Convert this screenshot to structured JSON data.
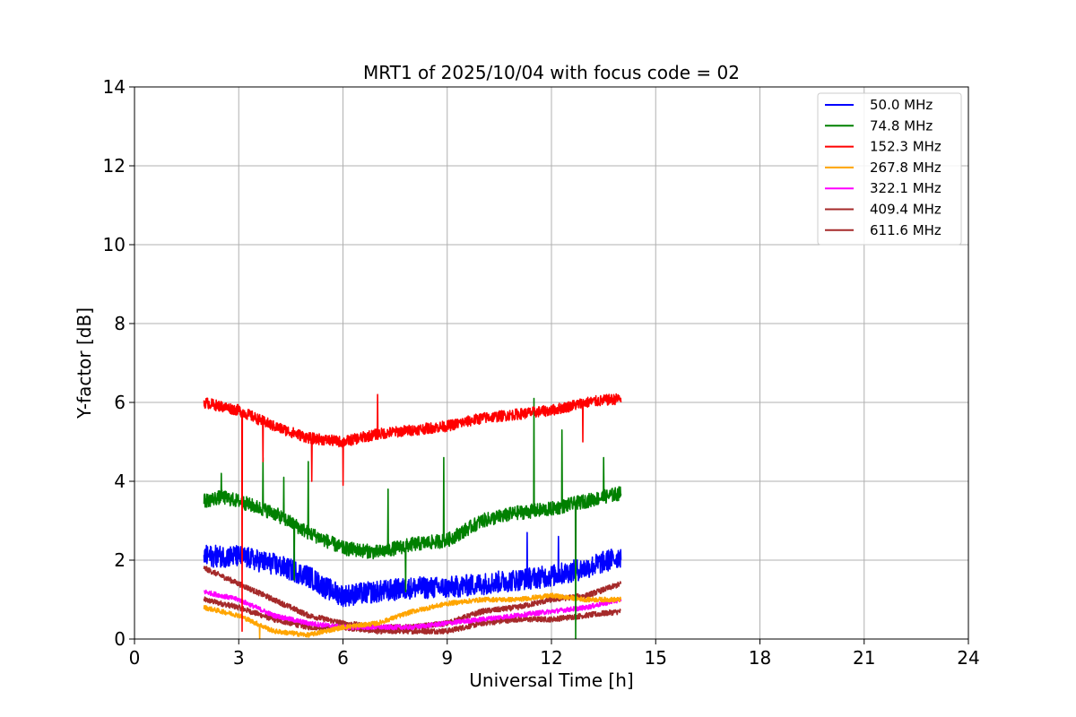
{
  "chart_data": {
    "type": "line",
    "title": "MRT1 of 2025/10/04 with focus code = 02",
    "xlabel": "Universal Time [h]",
    "ylabel": "Y-factor [dB]",
    "xlim": [
      0,
      24
    ],
    "ylim": [
      0,
      14
    ],
    "xticks": [
      0,
      3,
      6,
      9,
      12,
      15,
      18,
      21,
      24
    ],
    "yticks": [
      0,
      2,
      4,
      6,
      8,
      10,
      12,
      14
    ],
    "grid": true,
    "legend_position": "top-right",
    "x_range_data": [
      2.0,
      14.0
    ],
    "series": [
      {
        "name": " 50.0 MHz",
        "color": "#0000ff",
        "noise": 0.28,
        "x": [
          2.0,
          3.0,
          4.0,
          5.0,
          5.5,
          6.0,
          7.0,
          8.0,
          9.0,
          10.0,
          11.0,
          12.0,
          13.0,
          14.0
        ],
        "y": [
          2.1,
          2.1,
          1.9,
          1.6,
          1.3,
          1.1,
          1.2,
          1.3,
          1.3,
          1.4,
          1.5,
          1.6,
          1.8,
          2.1
        ],
        "spikes": [
          [
            3.3,
            2.0
          ],
          [
            4.6,
            2.6
          ],
          [
            11.3,
            2.7
          ],
          [
            12.2,
            2.6
          ]
        ]
      },
      {
        "name": " 74.8 MHz",
        "color": "#008000",
        "noise": 0.18,
        "x": [
          2.0,
          2.5,
          3.0,
          4.0,
          5.0,
          6.0,
          7.0,
          8.0,
          9.0,
          10.0,
          11.0,
          12.0,
          13.0,
          14.0
        ],
        "y": [
          3.5,
          3.6,
          3.5,
          3.2,
          2.7,
          2.3,
          2.2,
          2.4,
          2.5,
          3.0,
          3.2,
          3.3,
          3.5,
          3.7
        ],
        "spikes": [
          [
            2.5,
            4.2
          ],
          [
            3.7,
            4.6
          ],
          [
            4.3,
            4.1
          ],
          [
            5.0,
            4.5
          ],
          [
            7.3,
            3.8
          ],
          [
            8.9,
            4.6
          ],
          [
            11.5,
            6.1
          ],
          [
            12.3,
            5.3
          ],
          [
            13.5,
            4.6
          ],
          [
            4.6,
            1.5
          ],
          [
            7.8,
            1.2
          ],
          [
            12.7,
            0.0
          ]
        ]
      },
      {
        "name": " 152.3 MHz",
        "color": "#ff0000",
        "noise": 0.14,
        "x": [
          2.0,
          3.0,
          4.0,
          5.0,
          6.0,
          7.0,
          8.0,
          9.0,
          10.0,
          11.0,
          12.0,
          13.0,
          14.0
        ],
        "y": [
          6.0,
          5.8,
          5.4,
          5.1,
          5.0,
          5.2,
          5.3,
          5.4,
          5.6,
          5.7,
          5.8,
          6.0,
          6.1
        ],
        "spikes": [
          [
            7.0,
            6.2
          ],
          [
            3.1,
            0.2
          ],
          [
            3.7,
            4.5
          ],
          [
            5.1,
            4.0
          ],
          [
            6.0,
            3.9
          ],
          [
            12.9,
            5.0
          ]
        ]
      },
      {
        "name": " 267.8 MHz",
        "color": "#ffa500",
        "noise": 0.06,
        "x": [
          2.0,
          3.0,
          4.0,
          5.0,
          6.0,
          7.0,
          8.0,
          9.0,
          10.0,
          11.0,
          12.0,
          13.0,
          14.0
        ],
        "y": [
          0.8,
          0.6,
          0.2,
          0.1,
          0.3,
          0.4,
          0.7,
          0.9,
          1.0,
          1.0,
          1.1,
          1.0,
          1.0
        ],
        "spikes": [
          [
            3.6,
            0.0
          ]
        ]
      },
      {
        "name": " 322.1 MHz",
        "color": "#ff00ff",
        "noise": 0.06,
        "x": [
          2.0,
          3.0,
          4.0,
          5.0,
          6.0,
          7.0,
          8.0,
          9.0,
          10.0,
          11.0,
          12.0,
          13.0,
          14.0
        ],
        "y": [
          1.2,
          1.0,
          0.6,
          0.4,
          0.3,
          0.3,
          0.3,
          0.4,
          0.5,
          0.6,
          0.7,
          0.8,
          1.0
        ],
        "spikes": []
      },
      {
        "name": " 409.4 MHz",
        "color": "#a52a2a",
        "noise": 0.07,
        "x": [
          2.0,
          3.0,
          4.0,
          5.0,
          6.0,
          7.0,
          8.0,
          9.0,
          10.0,
          11.0,
          12.0,
          13.0,
          14.0
        ],
        "y": [
          1.8,
          1.4,
          1.0,
          0.6,
          0.4,
          0.3,
          0.3,
          0.4,
          0.7,
          0.8,
          1.0,
          1.1,
          1.4
        ],
        "spikes": []
      },
      {
        "name": " 611.6 MHz",
        "color": "#a52a2a",
        "noise": 0.07,
        "x": [
          2.0,
          3.0,
          4.0,
          5.0,
          6.0,
          7.0,
          8.0,
          9.0,
          10.0,
          11.0,
          12.0,
          13.0,
          14.0
        ],
        "y": [
          1.0,
          0.8,
          0.5,
          0.3,
          0.3,
          0.2,
          0.2,
          0.2,
          0.4,
          0.5,
          0.5,
          0.6,
          0.7
        ],
        "spikes": []
      }
    ]
  }
}
